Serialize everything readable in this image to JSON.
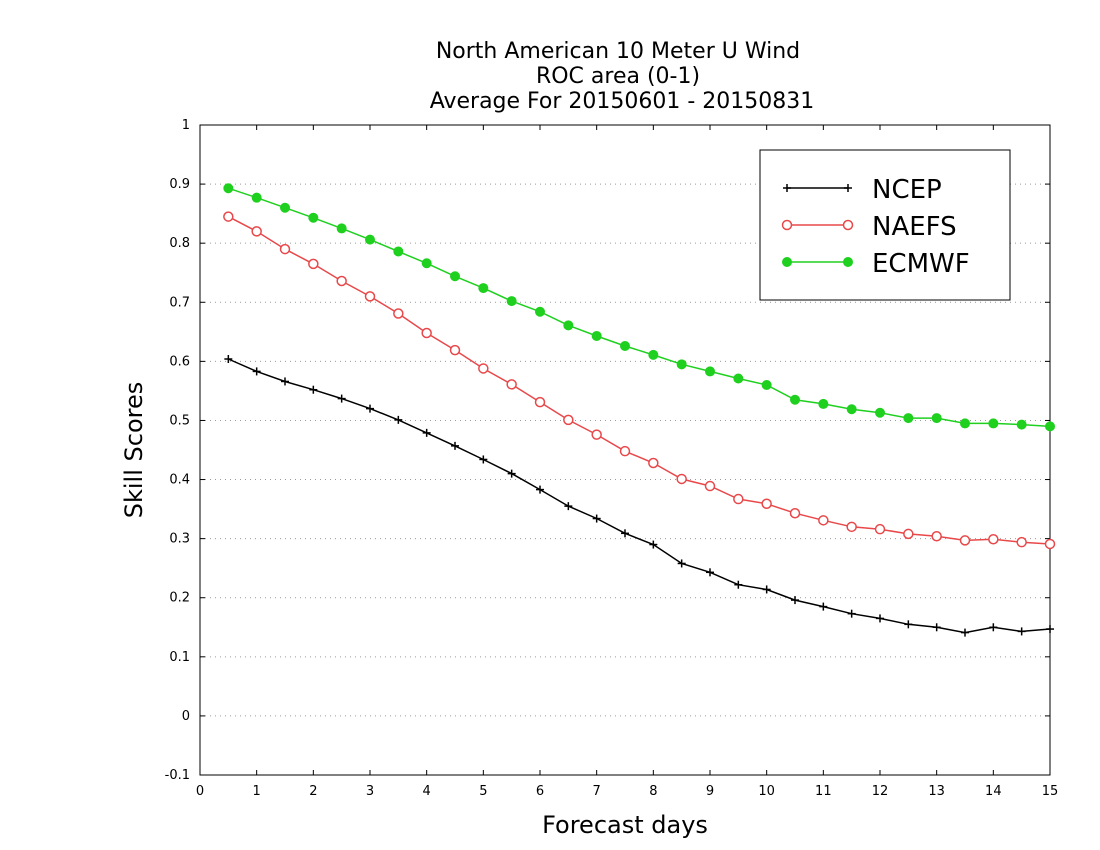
{
  "chart_data": {
    "type": "line",
    "title_lines": [
      "North American 10 Meter U Wind",
      "ROC area (0-1)",
      "Average For 20150601 - 20150831"
    ],
    "xlabel": "Forecast days",
    "ylabel": "Skill Scores",
    "xlim": [
      0,
      15
    ],
    "ylim": [
      -0.1,
      1
    ],
    "x_ticks": [
      "0",
      "1",
      "2",
      "3",
      "4",
      "5",
      "6",
      "7",
      "8",
      "9",
      "10",
      "11",
      "12",
      "13",
      "14",
      "15"
    ],
    "y_ticks": [
      "-0.1",
      "0",
      "0.1",
      "0.2",
      "0.3",
      "0.4",
      "0.5",
      "0.6",
      "0.7",
      "0.8",
      "0.9",
      "1"
    ],
    "grid": "horizontal dotted",
    "legend_position": "top-right",
    "x": [
      0.5,
      1,
      1.5,
      2,
      2.5,
      3,
      3.5,
      4,
      4.5,
      5,
      5.5,
      6,
      6.5,
      7,
      7.5,
      8,
      8.5,
      9,
      9.5,
      10,
      10.5,
      11,
      11.5,
      12,
      12.5,
      13,
      13.5,
      14,
      14.5,
      15
    ],
    "series": [
      {
        "name": "NCEP",
        "color": "#000000",
        "marker": "plus",
        "values": [
          0.604,
          0.583,
          0.566,
          0.552,
          0.537,
          0.52,
          0.501,
          0.479,
          0.457,
          0.434,
          0.41,
          0.383,
          0.355,
          0.334,
          0.309,
          0.29,
          0.258,
          0.243,
          0.222,
          0.214,
          0.196,
          0.185,
          0.173,
          0.165,
          0.155,
          0.15,
          0.141,
          0.15,
          0.143,
          0.147
        ]
      },
      {
        "name": "NAEFS",
        "color": "#e8484a",
        "marker": "open-circle",
        "values": [
          0.845,
          0.82,
          0.79,
          0.765,
          0.736,
          0.71,
          0.681,
          0.648,
          0.619,
          0.588,
          0.561,
          0.531,
          0.501,
          0.476,
          0.448,
          0.428,
          0.401,
          0.389,
          0.367,
          0.359,
          0.343,
          0.331,
          0.32,
          0.316,
          0.308,
          0.304,
          0.297,
          0.299,
          0.294,
          0.291
        ]
      },
      {
        "name": "ECMWF",
        "color": "#1fd01f",
        "marker": "filled-circle",
        "values": [
          0.893,
          0.877,
          0.86,
          0.843,
          0.825,
          0.806,
          0.786,
          0.766,
          0.744,
          0.724,
          0.702,
          0.684,
          0.661,
          0.643,
          0.626,
          0.611,
          0.595,
          0.583,
          0.571,
          0.56,
          0.535,
          0.528,
          0.519,
          0.513,
          0.504,
          0.504,
          0.495,
          0.495,
          0.493,
          0.49
        ]
      }
    ]
  }
}
